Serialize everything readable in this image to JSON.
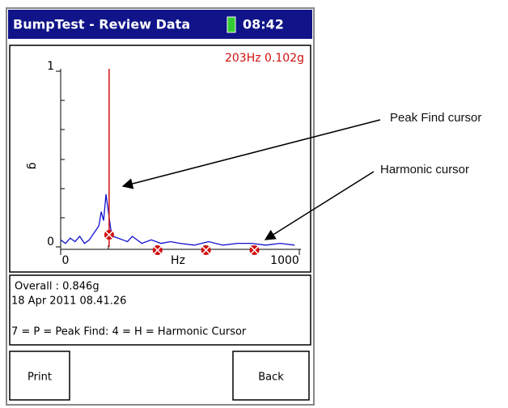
{
  "header": {
    "title": "BumpTest - Review Data",
    "time": "08:42"
  },
  "chart_data": {
    "type": "line",
    "readout": "203Hz  0.102g",
    "ylabel": "g",
    "xlabel": "Hz",
    "xlim": [
      0,
      1000
    ],
    "ylim": [
      0,
      1
    ],
    "xticks": [
      0,
      1000
    ],
    "yticks": [
      0,
      1
    ],
    "x": [
      0,
      20,
      40,
      60,
      80,
      100,
      120,
      140,
      160,
      170,
      180,
      190,
      200,
      210,
      220,
      240,
      260,
      280,
      300,
      340,
      380,
      420,
      460,
      500,
      560,
      620,
      680,
      740,
      800,
      860,
      920,
      980
    ],
    "series": [
      {
        "color": "#1010d0",
        "values": [
          0.04,
          0.02,
          0.05,
          0.03,
          0.06,
          0.02,
          0.04,
          0.08,
          0.12,
          0.2,
          0.15,
          0.3,
          0.2,
          0.1,
          0.06,
          0.05,
          0.04,
          0.03,
          0.06,
          0.02,
          0.04,
          0.02,
          0.03,
          0.02,
          0.01,
          0.03,
          0.01,
          0.02,
          0.02,
          0.01,
          0.02,
          0.01
        ]
      }
    ],
    "peak_cursor": 203,
    "harmonics": [
      406,
      609,
      812
    ],
    "cursor_color": "#d01010"
  },
  "info": [
    "Overall : 0.846g",
    "18 Apr 2011 08.41.26",
    "7 = P = Peak Find: 4 = H = Harmonic Cursor"
  ],
  "buttons": [
    "Print",
    "Back"
  ],
  "annotations": [
    "Peak Find cursor",
    "Harmonic cursor"
  ]
}
